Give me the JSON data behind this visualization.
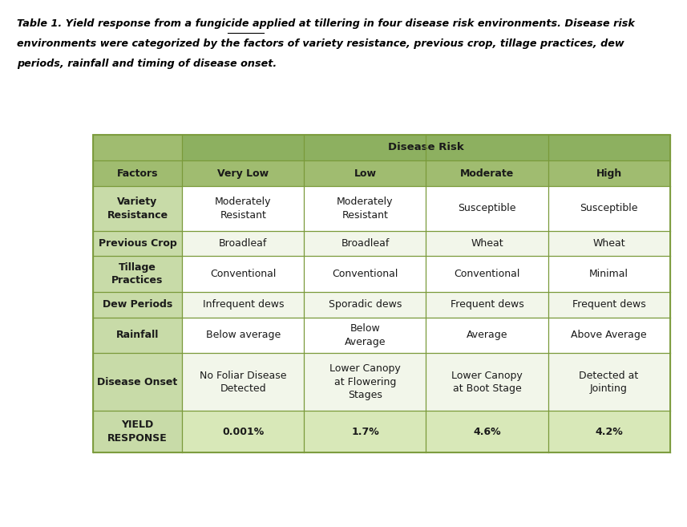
{
  "title_line1": "Table 1. Yield response from a fungicide applied at tillering in four disease risk environments. Disease risk",
  "title_line2": "environments were categorized by the factors of variety resistance, previous crop, tillage practices, dew",
  "title_line3": "periods, rainfall and timing of disease onset.",
  "title_underline_word": "tillering",
  "disease_risk_header": "Disease Risk",
  "col_headers": [
    "Factors",
    "Very Low",
    "Low",
    "Moderate",
    "High"
  ],
  "row_headers": [
    "Variety\nResistance",
    "Previous Crop",
    "Tillage\nPractices",
    "Dew Periods",
    "Rainfall",
    "Disease Onset",
    "YIELD\nRESPONSE"
  ],
  "table_data": [
    [
      "Moderately\nResistant",
      "Moderately\nResistant",
      "Susceptible",
      "Susceptible"
    ],
    [
      "Broadleaf",
      "Broadleaf",
      "Wheat",
      "Wheat"
    ],
    [
      "Conventional",
      "Conventional",
      "Conventional",
      "Minimal"
    ],
    [
      "Infrequent dews",
      "Sporadic dews",
      "Frequent dews",
      "Frequent dews"
    ],
    [
      "Below average",
      "Below\nAverage",
      "Average",
      "Above Average"
    ],
    [
      "No Foliar Disease\nDetected",
      "Lower Canopy\nat Flowering\nStages",
      "Lower Canopy\nat Boot Stage",
      "Detected at\nJointing"
    ],
    [
      "0.001%",
      "1.7%",
      "4.6%",
      "4.2%"
    ]
  ],
  "header_bg_dark": "#8db060",
  "header_bg_medium": "#a0bc70",
  "row_header_bg": "#c8dba8",
  "data_bg_white": "#ffffff",
  "data_bg_light": "#f2f6ea",
  "yield_data_bg": "#d8e8b8",
  "border_color": "#7a9a3a",
  "text_dark": "#1a1a1a",
  "figure_bg": "#ffffff",
  "font_size_data": 9,
  "font_size_header": 9,
  "font_size_title": 9.2
}
